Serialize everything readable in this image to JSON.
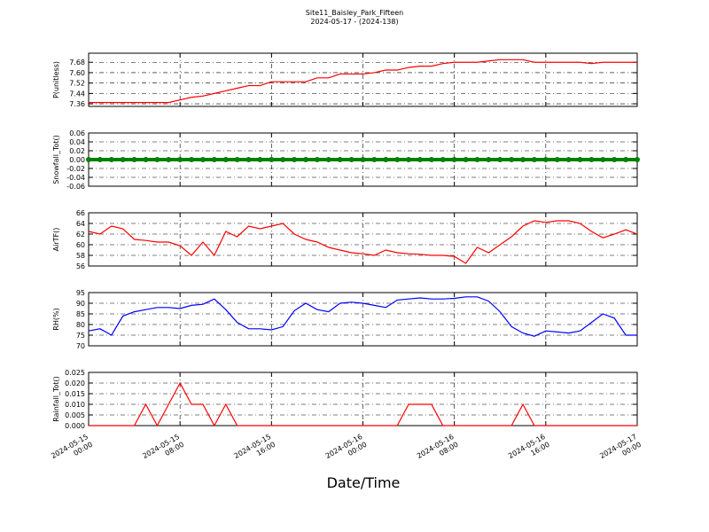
{
  "title": "Site11_Baisley_Park_Fifteen",
  "subtitle": "2024-05-17 - (2024-138)",
  "xlabel": "Date/Time",
  "x": [
    "2024-05-15 00:00",
    "2024-05-15 01:00",
    "2024-05-15 02:00",
    "2024-05-15 03:00",
    "2024-05-15 04:00",
    "2024-05-15 05:00",
    "2024-05-15 06:00",
    "2024-05-15 07:00",
    "2024-05-15 08:00",
    "2024-05-15 09:00",
    "2024-05-15 10:00",
    "2024-05-15 11:00",
    "2024-05-15 12:00",
    "2024-05-15 13:00",
    "2024-05-15 14:00",
    "2024-05-15 15:00",
    "2024-05-15 16:00",
    "2024-05-15 17:00",
    "2024-05-15 18:00",
    "2024-05-15 19:00",
    "2024-05-15 20:00",
    "2024-05-15 21:00",
    "2024-05-15 22:00",
    "2024-05-15 23:00",
    "2024-05-16 00:00",
    "2024-05-16 01:00",
    "2024-05-16 02:00",
    "2024-05-16 03:00",
    "2024-05-16 04:00",
    "2024-05-16 05:00",
    "2024-05-16 06:00",
    "2024-05-16 07:00",
    "2024-05-16 08:00",
    "2024-05-16 09:00",
    "2024-05-16 10:00",
    "2024-05-16 11:00",
    "2024-05-16 12:00",
    "2024-05-16 13:00",
    "2024-05-16 14:00",
    "2024-05-16 15:00",
    "2024-05-16 16:00",
    "2024-05-16 17:00",
    "2024-05-16 18:00",
    "2024-05-16 19:00",
    "2024-05-16 20:00",
    "2024-05-16 21:00",
    "2024-05-16 22:00",
    "2024-05-16 23:00",
    "2024-05-17 00:00"
  ],
  "xlim": [
    "2024-05-15 00:00",
    "2024-05-17 00:00"
  ],
  "xticks": [
    {
      "value": "2024-05-15 00:00",
      "label": "2024-05-15\n00:00"
    },
    {
      "value": "2024-05-15 08:00",
      "label": "2024-05-15\n08:00"
    },
    {
      "value": "2024-05-15 16:00",
      "label": "2024-05-15\n16:00"
    },
    {
      "value": "2024-05-16 00:00",
      "label": "2024-05-16\n00:00"
    },
    {
      "value": "2024-05-16 08:00",
      "label": "2024-05-16\n08:00"
    },
    {
      "value": "2024-05-16 16:00",
      "label": "2024-05-16\n16:00"
    },
    {
      "value": "2024-05-17 00:00",
      "label": "2024-05-17\n00:00"
    }
  ],
  "chart_data": [
    {
      "type": "line",
      "ylabel": "P(unitless)",
      "color": "#ff0000",
      "grid": true,
      "ylim": [
        7.34,
        7.75
      ],
      "yticks": [
        7.36,
        7.44,
        7.52,
        {
          "value": 7.6,
          "label": "7.60"
        },
        7.68
      ],
      "values": [
        7.37,
        7.37,
        7.37,
        7.37,
        7.37,
        7.37,
        7.37,
        7.37,
        7.39,
        7.41,
        7.42,
        7.44,
        7.46,
        7.48,
        7.5,
        7.5,
        7.53,
        7.53,
        7.53,
        7.53,
        7.56,
        7.56,
        7.59,
        7.59,
        7.59,
        7.6,
        7.62,
        7.62,
        7.64,
        7.65,
        7.65,
        7.67,
        7.68,
        7.68,
        7.68,
        7.69,
        7.7,
        7.7,
        7.7,
        7.68,
        7.68,
        7.68,
        7.68,
        7.68,
        7.67,
        7.68,
        7.68,
        7.68,
        7.68
      ]
    },
    {
      "type": "line",
      "marker": true,
      "ylabel": "Snowfall_Tot()",
      "color": "#008000",
      "grid": true,
      "ylim": [
        -0.06,
        0.06
      ],
      "yticks": [
        -0.06,
        -0.04,
        -0.02,
        {
          "value": 0,
          "label": "0.00"
        },
        0.02,
        0.04,
        0.06
      ],
      "values": [
        0,
        0,
        0,
        0,
        0,
        0,
        0,
        0,
        0,
        0,
        0,
        0,
        0,
        0,
        0,
        0,
        0,
        0,
        0,
        0,
        0,
        0,
        0,
        0,
        0,
        0,
        0,
        0,
        0,
        0,
        0,
        0,
        0,
        0,
        0,
        0,
        0,
        0,
        0,
        0,
        0,
        0,
        0,
        0,
        0,
        0,
        0,
        0,
        0
      ]
    },
    {
      "type": "line",
      "ylabel": "AirTF()",
      "color": "#ff0000",
      "grid": true,
      "ylim": [
        56,
        66
      ],
      "yticks": [
        56,
        58,
        60,
        62,
        64,
        66
      ],
      "values": [
        62.5,
        62,
        63.5,
        63,
        61,
        60.8,
        60.5,
        60.5,
        59.8,
        58,
        60.5,
        58,
        62.5,
        61.5,
        63.5,
        63,
        63.5,
        64,
        62,
        61,
        60.5,
        59.5,
        59,
        58.5,
        58.3,
        58,
        59,
        58.5,
        58.3,
        58.2,
        58,
        58,
        57.8,
        56.5,
        59.5,
        58.5,
        60,
        61.5,
        63.5,
        64.5,
        64.2,
        64.5,
        64.5,
        64,
        62.5,
        61.3,
        62,
        62.8,
        62
      ]
    },
    {
      "type": "line",
      "ylabel": "RH(%)",
      "color": "#0000ff",
      "grid": true,
      "ylim": [
        70,
        95
      ],
      "yticks": [
        70,
        75,
        80,
        85,
        90,
        95
      ],
      "values": [
        77,
        78,
        75,
        84,
        86,
        87,
        88,
        88,
        87.5,
        89,
        89.5,
        92,
        87,
        81,
        78,
        78,
        77.5,
        79,
        86.5,
        90,
        87,
        86,
        90,
        90.5,
        90,
        89,
        88,
        91.5,
        92,
        92.5,
        92,
        92,
        92.3,
        93,
        93,
        91,
        86,
        79,
        76,
        74.5,
        77,
        76.5,
        76,
        77,
        81,
        85,
        83,
        75,
        75
      ]
    },
    {
      "type": "line",
      "ylabel": "Rainfall_Tot()",
      "color": "#ff0000",
      "grid": true,
      "ylim": [
        0,
        0.025
      ],
      "yticks": [
        {
          "value": 0,
          "label": "0.000"
        },
        0.005,
        {
          "value": 0.01,
          "label": "0.010"
        },
        0.015,
        {
          "value": 0.02,
          "label": "0.020"
        },
        0.025
      ],
      "values": [
        0,
        0,
        0,
        0,
        0,
        0.01,
        0,
        0.01,
        0.02,
        0.01,
        0.01,
        0,
        0.01,
        0,
        0,
        0,
        0,
        0,
        0,
        0,
        0,
        0,
        0,
        0,
        0,
        0,
        0,
        0,
        0.01,
        0.01,
        0.01,
        0,
        0,
        0,
        0,
        0,
        0,
        0,
        0.01,
        0,
        0,
        0,
        0,
        0,
        0,
        0,
        0,
        0,
        0
      ]
    }
  ]
}
